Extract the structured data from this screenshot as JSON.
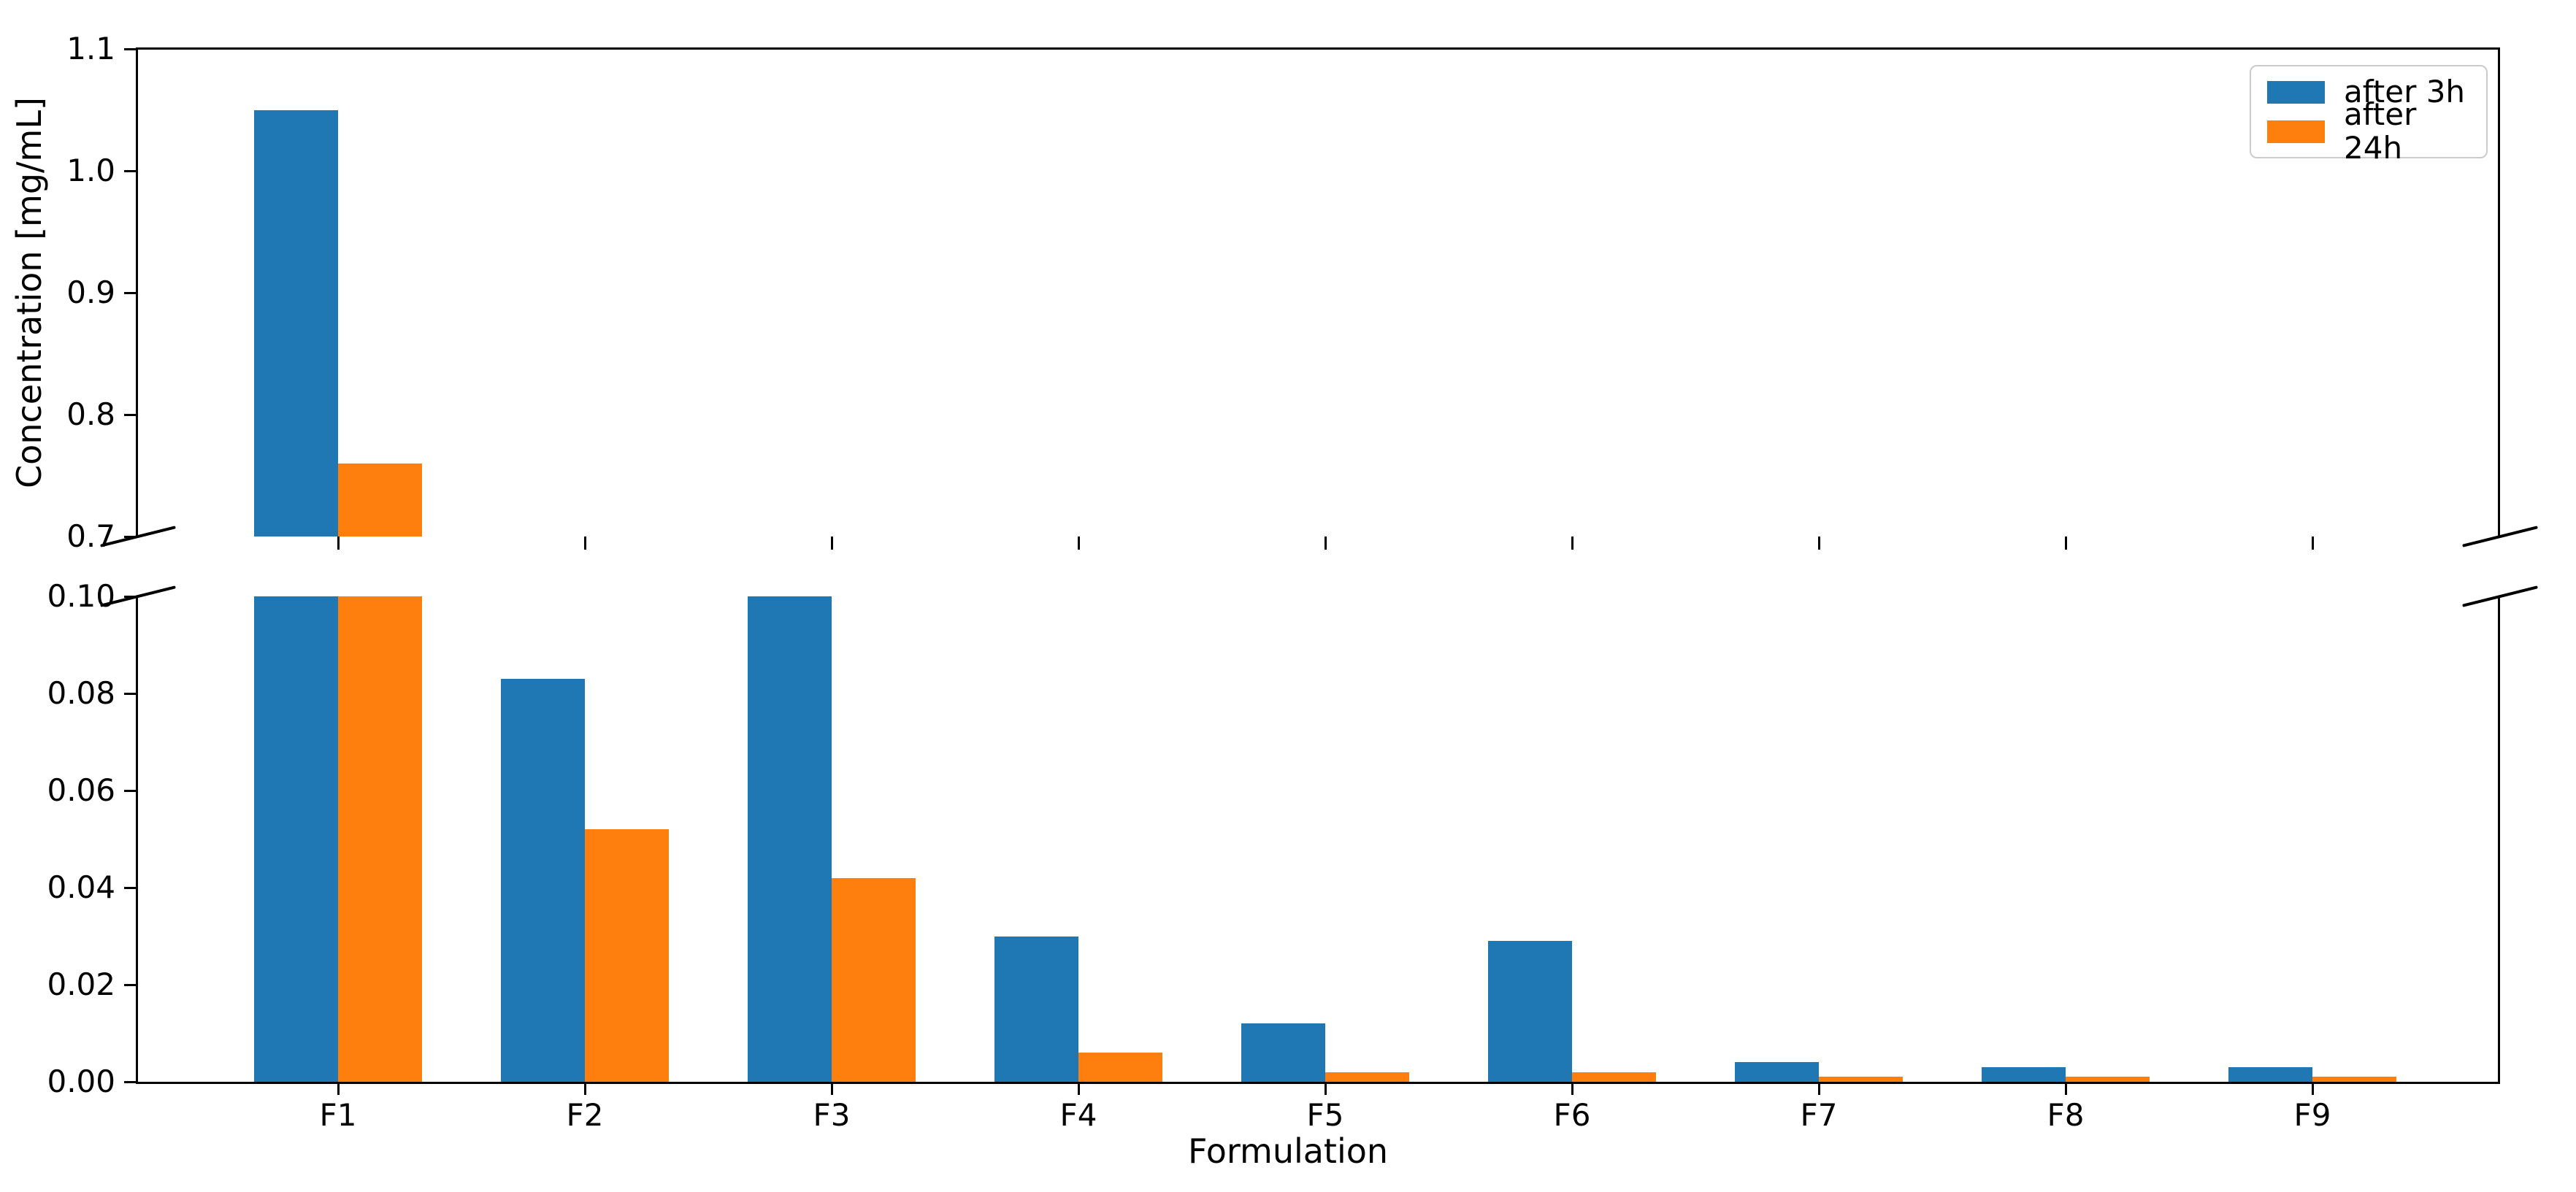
{
  "chart_data": {
    "type": "bar",
    "title": "",
    "xlabel": "Formulation",
    "ylabel": "Concentration [mg/mL]",
    "categories": [
      "F1",
      "F2",
      "F3",
      "F4",
      "F5",
      "F6",
      "F7",
      "F8",
      "F9"
    ],
    "series": [
      {
        "name": "after 3h",
        "color": "#1f77b4",
        "values": [
          1.05,
          0.083,
          0.1,
          0.03,
          0.012,
          0.029,
          0.004,
          0.003,
          0.003
        ]
      },
      {
        "name": "after 24h",
        "color": "#ff7f0e",
        "values": [
          0.76,
          0.052,
          0.042,
          0.006,
          0.002,
          0.002,
          0.001,
          0.001,
          0.001
        ]
      }
    ],
    "broken_axis": {
      "top_panel": {
        "ylim": [
          0.7,
          1.1
        ],
        "yticks": [
          "0.7",
          "0.8",
          "0.9",
          "1.0",
          "1.1"
        ]
      },
      "bottom_panel": {
        "ylim": [
          0.0,
          0.1
        ],
        "yticks": [
          "0.00",
          "0.02",
          "0.04",
          "0.06",
          "0.08",
          "0.10"
        ]
      }
    },
    "legend": {
      "position": "upper right",
      "entries": [
        "after 3h",
        "after 24h"
      ]
    },
    "grid": "off",
    "note": "F3 'after 3h' bar is clipped at the 0.10 axis break; F1 bars exceed 0.10 and continue in the upper panel."
  },
  "style_colors": {
    "axis": "#000000",
    "text": "#000000",
    "background": "#ffffff",
    "legend_border": "#cbcbcb"
  }
}
